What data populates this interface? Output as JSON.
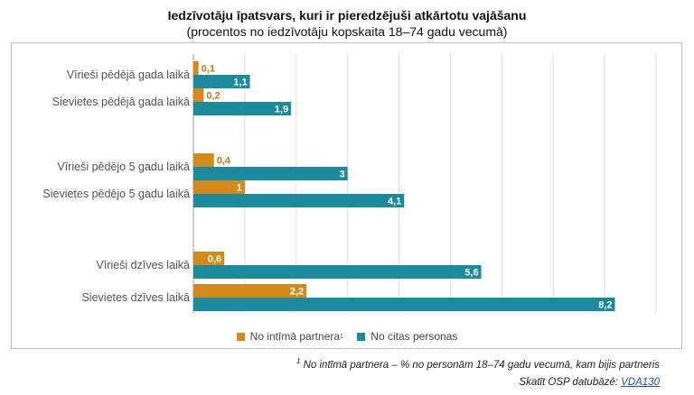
{
  "title": "Iedzīvotāju īpatsvars, kuri ir pieredzējuši atkārtotu vajāšanu",
  "subtitle": "(procentos no iedzīvotāju kopskaita 18–74 gadu vecumā)",
  "legend": {
    "series1_label": "No intīmā partnera",
    "series1_sup": "1",
    "series2_label": "No citas personas"
  },
  "footnote": {
    "sup": "1",
    "text": "No intīmā partnera – % no personām 18–74 gadu vecumā, kam bijis partneris"
  },
  "source": {
    "prefix": "Skatīt OSP datubāzē: ",
    "link": "VDA130"
  },
  "colors": {
    "series1": "#d4891b",
    "series2": "#1b8a9c"
  },
  "chart_data": {
    "type": "bar",
    "orientation": "horizontal",
    "categories": [
      "Vīrieši pēdējā gada laikā",
      "Sievietes pēdējā gada laikā",
      "Vīrieši pēdējo 5 gadu laikā",
      "Sievietes pēdējo 5 gadu laikā",
      "Vīrieši dzīves laikā",
      "Sievietes dzīves laikā"
    ],
    "series": [
      {
        "name": "No intīmā partnera",
        "values": [
          0.1,
          0.2,
          0.4,
          1,
          0.6,
          2.2
        ],
        "labels": [
          "0,1",
          "0,2",
          "0,4",
          "1",
          "0,6",
          "2,2"
        ]
      },
      {
        "name": "No citas personas",
        "values": [
          1.1,
          1.9,
          3,
          4.1,
          5.6,
          8.2
        ],
        "labels": [
          "1,1",
          "1,9",
          "3",
          "4,1",
          "5,6",
          "8,2"
        ]
      }
    ],
    "xlim": [
      0,
      9
    ],
    "grid": true,
    "legend_position": "bottom"
  }
}
